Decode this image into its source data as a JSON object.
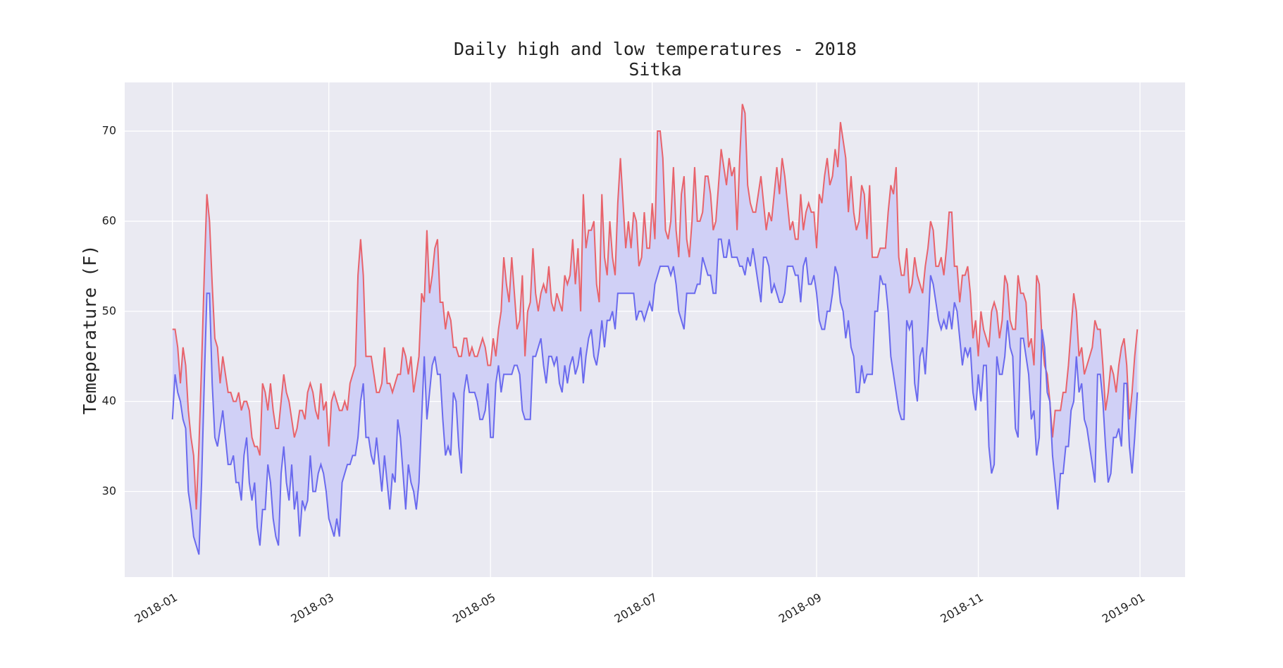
{
  "chart_data": {
    "type": "line",
    "title": "Daily high and low temperatures - 2018",
    "subtitle": "Sitka",
    "ylabel": "Temeperature (F)",
    "x": [
      0,
      1,
      2,
      3,
      4,
      5,
      6,
      7,
      8,
      9,
      10,
      11,
      12,
      13,
      14,
      15,
      16,
      17,
      18,
      19,
      20,
      21,
      22,
      23,
      24,
      25,
      26,
      27,
      28,
      29,
      30,
      31,
      32,
      33,
      34,
      35,
      36,
      37,
      38,
      39,
      40,
      41,
      42,
      43,
      44,
      45,
      46,
      47,
      48,
      49,
      50,
      51,
      52,
      53,
      54,
      55,
      56,
      57,
      58,
      59,
      60,
      61,
      62,
      63,
      64,
      65,
      66,
      67,
      68,
      69,
      70,
      71,
      72,
      73,
      74,
      75,
      76,
      77,
      78,
      79,
      80,
      81,
      82,
      83,
      84,
      85,
      86,
      87,
      88,
      89,
      90,
      91,
      92,
      93,
      94,
      95,
      96,
      97,
      98,
      99,
      100,
      101,
      102,
      103,
      104,
      105,
      106,
      107,
      108,
      109,
      110,
      111,
      112,
      113,
      114,
      115,
      116,
      117,
      118,
      119,
      120,
      121,
      122,
      123,
      124,
      125,
      126,
      127,
      128,
      129,
      130,
      131,
      132,
      133,
      134,
      135,
      136,
      137,
      138,
      139,
      140,
      141,
      142,
      143,
      144,
      145,
      146,
      147,
      148,
      149,
      150,
      151,
      152,
      153,
      154,
      155,
      156,
      157,
      158,
      159,
      160,
      161,
      162,
      163,
      164,
      165,
      166,
      167,
      168,
      169,
      170,
      171,
      172,
      173,
      174,
      175,
      176,
      177,
      178,
      179,
      180,
      181,
      182,
      183,
      184,
      185,
      186,
      187,
      188,
      189,
      190,
      191,
      192,
      193,
      194,
      195,
      196,
      197,
      198,
      199,
      200,
      201,
      202,
      203,
      204,
      205,
      206,
      207,
      208,
      209,
      210,
      211,
      212,
      213,
      214,
      215,
      216,
      217,
      218,
      219,
      220,
      221,
      222,
      223,
      224,
      225,
      226,
      227,
      228,
      229,
      230,
      231,
      232,
      233,
      234,
      235,
      236,
      237,
      238,
      239,
      240,
      241,
      242,
      243,
      244,
      245,
      246,
      247,
      248,
      249,
      250,
      251,
      252,
      253,
      254,
      255,
      256,
      257,
      258,
      259,
      260,
      261,
      262,
      263,
      264,
      265,
      266,
      267,
      268,
      269,
      270,
      271,
      272,
      273,
      274,
      275,
      276,
      277,
      278,
      279,
      280,
      281,
      282,
      283,
      284,
      285,
      286,
      287,
      288,
      289,
      290,
      291,
      292,
      293,
      294,
      295,
      296,
      297,
      298,
      299,
      300,
      301,
      302,
      303,
      304,
      305,
      306,
      307,
      308,
      309,
      310,
      311,
      312,
      313,
      314,
      315,
      316,
      317,
      318,
      319,
      320,
      321,
      322,
      323,
      324,
      325,
      326,
      327,
      328,
      329,
      330,
      331,
      332,
      333,
      334,
      335,
      336,
      337,
      338,
      339,
      340,
      341,
      342,
      343,
      344,
      345,
      346,
      347,
      348,
      349,
      350,
      351,
      352,
      353,
      354,
      355,
      356,
      357,
      358,
      359,
      360,
      361,
      362,
      363,
      364
    ],
    "series": [
      {
        "name": "High",
        "color": "#e8636b",
        "values": [
          48,
          48,
          46,
          42,
          46,
          44,
          39,
          36,
          34,
          28,
          35,
          44,
          54,
          63,
          60,
          53,
          47,
          46,
          42,
          45,
          43,
          41,
          41,
          40,
          40,
          41,
          39,
          40,
          40,
          39,
          36,
          35,
          35,
          34,
          42,
          41,
          39,
          42,
          39,
          37,
          37,
          40,
          43,
          41,
          40,
          38,
          36,
          37,
          39,
          39,
          38,
          41,
          42,
          41,
          39,
          38,
          42,
          39,
          40,
          35,
          40,
          41,
          40,
          39,
          39,
          40,
          39,
          42,
          43,
          44,
          54,
          58,
          54,
          45,
          45,
          45,
          43,
          41,
          41,
          42,
          46,
          42,
          42,
          41,
          42,
          43,
          43,
          46,
          45,
          43,
          45,
          41,
          43,
          45,
          52,
          51,
          59,
          52,
          54,
          57,
          58,
          51,
          51,
          48,
          50,
          49,
          46,
          46,
          45,
          45,
          47,
          47,
          45,
          46,
          45,
          45,
          46,
          47,
          46,
          44,
          44,
          47,
          45,
          48,
          50,
          56,
          53,
          51,
          56,
          52,
          48,
          49,
          54,
          45,
          50,
          51,
          57,
          52,
          50,
          52,
          53,
          52,
          55,
          51,
          50,
          52,
          51,
          50,
          54,
          53,
          54,
          58,
          53,
          57,
          50,
          63,
          57,
          59,
          59,
          60,
          53,
          51,
          63,
          56,
          54,
          60,
          56,
          54,
          62,
          67,
          62,
          57,
          60,
          57,
          61,
          60,
          55,
          56,
          61,
          57,
          57,
          62,
          58,
          70,
          70,
          67,
          59,
          58,
          60,
          66,
          59,
          56,
          63,
          65,
          58,
          56,
          60,
          66,
          60,
          60,
          61,
          65,
          65,
          63,
          59,
          60,
          64,
          68,
          66,
          64,
          67,
          65,
          66,
          59,
          67,
          73,
          72,
          64,
          62,
          61,
          61,
          63,
          65,
          62,
          59,
          61,
          60,
          63,
          66,
          63,
          67,
          65,
          62,
          59,
          60,
          58,
          58,
          63,
          59,
          61,
          62,
          61,
          61,
          57,
          63,
          62,
          65,
          67,
          64,
          65,
          68,
          66,
          71,
          69,
          67,
          61,
          65,
          61,
          59,
          60,
          64,
          63,
          58,
          64,
          56,
          56,
          56,
          57,
          57,
          57,
          61,
          64,
          63,
          66,
          56,
          54,
          54,
          57,
          52,
          53,
          56,
          54,
          53,
          52,
          55,
          57,
          60,
          59,
          55,
          55,
          56,
          54,
          57,
          61,
          61,
          55,
          55,
          51,
          54,
          54,
          55,
          52,
          47,
          49,
          45,
          50,
          48,
          47,
          46,
          50,
          51,
          50,
          47,
          49,
          54,
          53,
          49,
          48,
          48,
          54,
          52,
          52,
          51,
          46,
          47,
          44,
          54,
          53,
          47,
          44,
          43,
          40,
          36,
          39,
          39,
          39,
          41,
          41,
          44,
          48,
          52,
          50,
          45,
          46,
          43,
          44,
          45,
          46,
          49,
          48,
          48,
          44,
          39,
          41,
          44,
          43,
          41,
          44,
          46,
          47,
          44,
          38,
          41,
          45,
          48
        ]
      },
      {
        "name": "Low",
        "color": "#6a6aee",
        "values": [
          38,
          43,
          41,
          40,
          38,
          37,
          30,
          28,
          25,
          24,
          23,
          31,
          42,
          52,
          52,
          42,
          36,
          35,
          37,
          39,
          36,
          33,
          33,
          34,
          31,
          31,
          29,
          34,
          36,
          31,
          29,
          31,
          26,
          24,
          28,
          28,
          33,
          31,
          27,
          25,
          24,
          32,
          35,
          31,
          29,
          33,
          28,
          30,
          25,
          29,
          28,
          29,
          34,
          30,
          30,
          32,
          33,
          32,
          30,
          27,
          26,
          25,
          27,
          25,
          31,
          32,
          33,
          33,
          34,
          34,
          36,
          40,
          42,
          36,
          36,
          34,
          33,
          36,
          33,
          30,
          34,
          31,
          28,
          32,
          31,
          38,
          36,
          32,
          28,
          33,
          31,
          30,
          28,
          31,
          38,
          45,
          38,
          41,
          44,
          45,
          43,
          43,
          38,
          34,
          35,
          34,
          41,
          40,
          35,
          32,
          41,
          43,
          41,
          41,
          41,
          40,
          38,
          38,
          39,
          42,
          36,
          36,
          42,
          44,
          41,
          43,
          43,
          43,
          43,
          44,
          44,
          43,
          39,
          38,
          38,
          38,
          45,
          45,
          46,
          47,
          44,
          42,
          45,
          45,
          44,
          45,
          42,
          41,
          44,
          42,
          44,
          45,
          43,
          44,
          46,
          42,
          45,
          47,
          48,
          45,
          44,
          46,
          49,
          46,
          49,
          49,
          50,
          48,
          52,
          52,
          52,
          52,
          52,
          52,
          52,
          49,
          50,
          50,
          49,
          50,
          51,
          50,
          53,
          54,
          55,
          55,
          55,
          55,
          54,
          55,
          53,
          50,
          49,
          48,
          52,
          52,
          52,
          52,
          53,
          53,
          56,
          55,
          54,
          54,
          52,
          52,
          58,
          58,
          56,
          56,
          58,
          56,
          56,
          56,
          55,
          55,
          54,
          56,
          55,
          57,
          55,
          53,
          51,
          56,
          56,
          55,
          52,
          53,
          52,
          51,
          51,
          52,
          55,
          55,
          55,
          54,
          54,
          51,
          55,
          56,
          53,
          53,
          54,
          52,
          49,
          48,
          48,
          50,
          50,
          52,
          55,
          54,
          51,
          50,
          47,
          49,
          46,
          45,
          41,
          41,
          44,
          42,
          43,
          43,
          43,
          50,
          50,
          54,
          53,
          53,
          50,
          45,
          43,
          41,
          39,
          38,
          38,
          49,
          48,
          49,
          42,
          40,
          45,
          46,
          43,
          48,
          54,
          53,
          51,
          49,
          48,
          49,
          48,
          50,
          48,
          51,
          50,
          47,
          44,
          46,
          45,
          46,
          41,
          39,
          43,
          40,
          44,
          44,
          35,
          32,
          33,
          45,
          43,
          43,
          45,
          49,
          46,
          45,
          37,
          36,
          47,
          47,
          45,
          43,
          38,
          39,
          34,
          36,
          48,
          46,
          41,
          40,
          34,
          31,
          28,
          32,
          32,
          35,
          35,
          39,
          40,
          45,
          41,
          42,
          38,
          37,
          35,
          33,
          31,
          43,
          43,
          40,
          35,
          31,
          32,
          36,
          36,
          37,
          35,
          42,
          42,
          35,
          32,
          36,
          41
        ]
      }
    ],
    "fill_between": true,
    "fill_color": "#d0d0f6",
    "xlim": [
      -18,
      382
    ],
    "xticks": [
      {
        "value": 0,
        "label": "2018-01"
      },
      {
        "value": 59,
        "label": "2018-03"
      },
      {
        "value": 120,
        "label": "2018-05"
      },
      {
        "value": 181,
        "label": "2018-07"
      },
      {
        "value": 243,
        "label": "2018-09"
      },
      {
        "value": 304,
        "label": "2018-11"
      },
      {
        "value": 365,
        "label": "2019-01"
      }
    ],
    "ylim": [
      20.5,
      75.4
    ],
    "yticks": [
      30,
      40,
      50,
      60,
      70
    ],
    "grid": true
  }
}
